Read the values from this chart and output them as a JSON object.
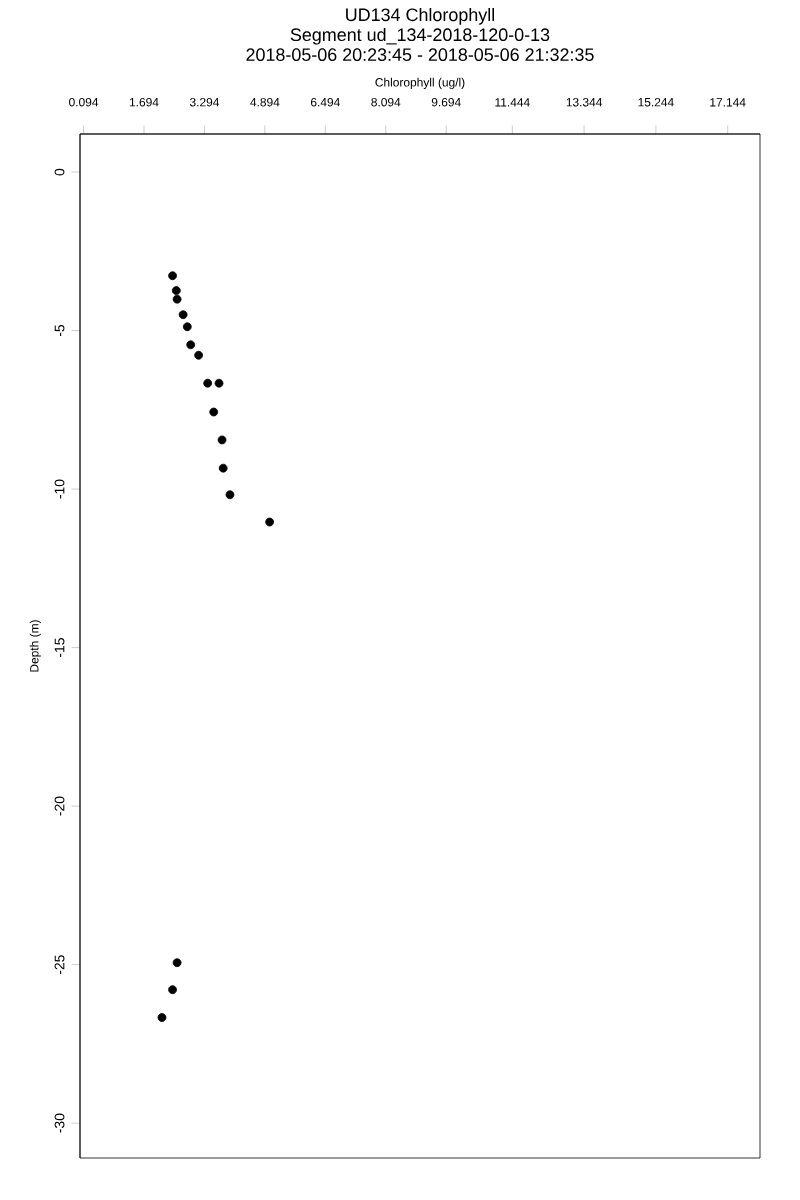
{
  "chart_data": {
    "type": "scatter",
    "title": "UD134 Chlorophyll",
    "subtitle": [
      "Segment ud_134-2018-120-0-13",
      "2018-05-06 20:23:45 - 2018-05-06 21:32:35"
    ],
    "xlabel": "Chlorophyll (ug/l)",
    "ylabel": "Depth (m)",
    "series": [
      {
        "color": "#000000",
        "x": [
          2.45,
          2.55,
          2.57,
          2.73,
          2.84,
          2.93,
          3.14,
          3.38,
          3.68,
          3.54,
          3.76,
          3.79,
          3.97,
          5.02,
          2.57,
          2.45,
          2.17
        ],
        "values": [
          -3.27,
          -3.74,
          -4.01,
          -4.5,
          -4.88,
          -5.45,
          -5.78,
          -6.66,
          -6.66,
          -7.57,
          -8.45,
          -9.34,
          -10.18,
          -11.04,
          -24.94,
          -25.79,
          -26.67
        ]
      }
    ],
    "xlim": [
      0,
      18
    ],
    "xticks": [
      0.094,
      1.694,
      3.294,
      4.894,
      6.494,
      8.094,
      9.694,
      11.444,
      13.344,
      15.244,
      17.144
    ],
    "ylim": [
      -31.1,
      1.2
    ],
    "yticks": [
      0,
      -5,
      -10,
      -15,
      -20,
      -25,
      -30
    ],
    "marker": "circle",
    "grid": false
  }
}
